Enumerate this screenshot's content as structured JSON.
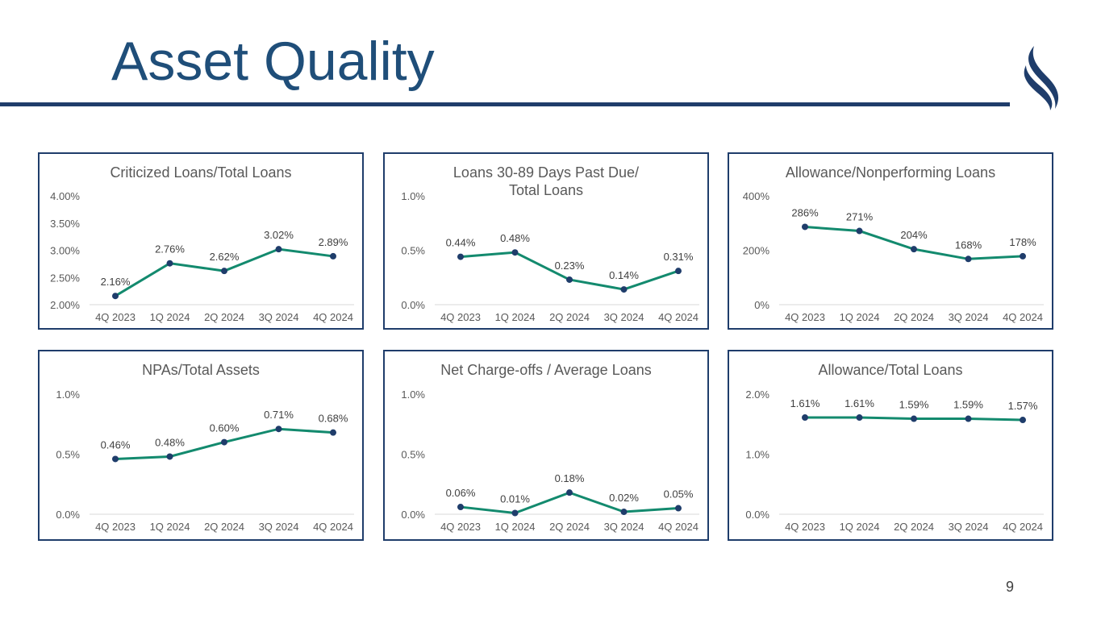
{
  "title": "Asset Quality",
  "page_number": "9",
  "colors": {
    "title": "#1f4e79",
    "line": "#138a6e",
    "marker": "#1f3d6b",
    "border": "#1f3d6b"
  },
  "chart_data": [
    {
      "type": "line",
      "title": "Criticized Loans/Total Loans",
      "categories": [
        "4Q 2023",
        "1Q 2024",
        "2Q 2024",
        "3Q 2024",
        "4Q 2024"
      ],
      "values": [
        2.16,
        2.76,
        2.62,
        3.02,
        2.89
      ],
      "data_labels": [
        "2.16%",
        "2.76%",
        "2.62%",
        "3.02%",
        "2.89%"
      ],
      "ylim": [
        2.0,
        4.0
      ],
      "yticks": [
        "2.00%",
        "2.50%",
        "3.00%",
        "3.50%",
        "4.00%"
      ]
    },
    {
      "type": "line",
      "title": "Loans 30-89 Days Past Due/\nTotal Loans",
      "categories": [
        "4Q 2023",
        "1Q 2024",
        "2Q 2024",
        "3Q 2024",
        "4Q 2024"
      ],
      "values": [
        0.44,
        0.48,
        0.23,
        0.14,
        0.31
      ],
      "data_labels": [
        "0.44%",
        "0.48%",
        "0.23%",
        "0.14%",
        "0.31%"
      ],
      "ylim": [
        0,
        1.0
      ],
      "yticks": [
        "0.0%",
        "0.5%",
        "1.0%"
      ]
    },
    {
      "type": "line",
      "title": "Allowance/Nonperforming Loans",
      "categories": [
        "4Q 2023",
        "1Q 2024",
        "2Q 2024",
        "3Q 2024",
        "4Q 2024"
      ],
      "values": [
        286,
        271,
        204,
        168,
        178
      ],
      "data_labels": [
        "286%",
        "271%",
        "204%",
        "168%",
        "178%"
      ],
      "ylim": [
        0,
        400
      ],
      "yticks": [
        "0%",
        "200%",
        "400%"
      ]
    },
    {
      "type": "line",
      "title": "NPAs/Total Assets",
      "categories": [
        "4Q 2023",
        "1Q 2024",
        "2Q 2024",
        "3Q 2024",
        "4Q 2024"
      ],
      "values": [
        0.46,
        0.48,
        0.6,
        0.71,
        0.68
      ],
      "data_labels": [
        "0.46%",
        "0.48%",
        "0.60%",
        "0.71%",
        "0.68%"
      ],
      "ylim": [
        0,
        1.0
      ],
      "yticks": [
        "0.0%",
        "0.5%",
        "1.0%"
      ]
    },
    {
      "type": "line",
      "title": "Net Charge-offs / Average Loans",
      "categories": [
        "4Q 2023",
        "1Q 2024",
        "2Q 2024",
        "3Q 2024",
        "4Q 2024"
      ],
      "values": [
        0.06,
        0.01,
        0.18,
        0.02,
        0.05
      ],
      "data_labels": [
        "0.06%",
        "0.01%",
        "0.18%",
        "0.02%",
        "0.05%"
      ],
      "ylim": [
        0,
        1.0
      ],
      "yticks": [
        "0.0%",
        "0.5%",
        "1.0%"
      ]
    },
    {
      "type": "line",
      "title": "Allowance/Total Loans",
      "categories": [
        "4Q 2023",
        "1Q 2024",
        "2Q 2024",
        "3Q 2024",
        "4Q 2024"
      ],
      "values": [
        1.61,
        1.61,
        1.59,
        1.59,
        1.57
      ],
      "data_labels": [
        "1.61%",
        "1.61%",
        "1.59%",
        "1.59%",
        "1.57%"
      ],
      "ylim": [
        0,
        2.0
      ],
      "yticks": [
        "0.0%",
        "1.0%",
        "2.0%"
      ]
    }
  ]
}
